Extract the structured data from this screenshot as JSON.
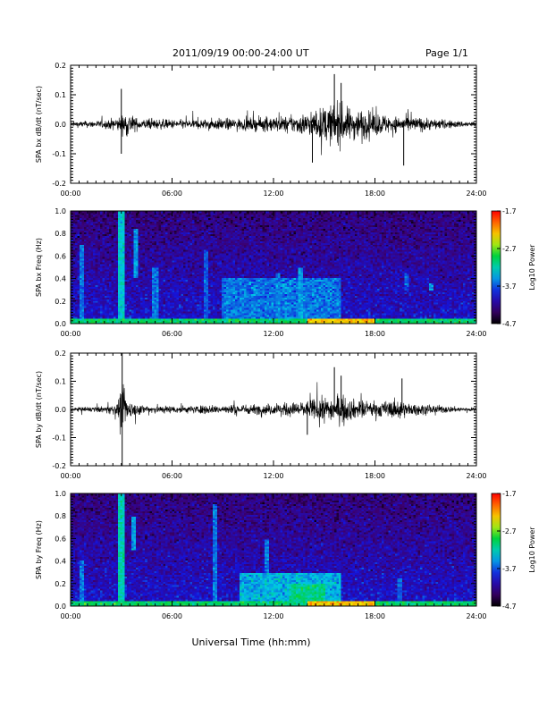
{
  "header": {
    "title": "2011/09/19  00:00-24:00 UT",
    "page": "Page 1/1"
  },
  "xaxis": {
    "label": "Universal Time (hh:mm)",
    "ticks": [
      "00:00",
      "06:00",
      "12:00",
      "18:00",
      "24:00"
    ],
    "range_hours": [
      0,
      24
    ]
  },
  "chart_data": [
    {
      "type": "line",
      "ylabel": "SPA bx dB/dt (nT/sec)",
      "ylim": [
        -0.2,
        0.2
      ],
      "yticks": [
        "0.2",
        "0.1",
        "0.0",
        "-0.1",
        "-0.2"
      ],
      "ytick_values": [
        0.2,
        0.1,
        0.0,
        -0.1,
        -0.2
      ],
      "color": "#000000",
      "envelope": {
        "x_hours": [
          0,
          1,
          2,
          3,
          3.3,
          4,
          5,
          6,
          7,
          8,
          9,
          10,
          11,
          12,
          13,
          14,
          14.5,
          15,
          15.5,
          16,
          16.5,
          17,
          18,
          18.5,
          19,
          20,
          21,
          22,
          23,
          24
        ],
        "amplitude": [
          0.02,
          0.025,
          0.03,
          0.06,
          0.1,
          0.04,
          0.04,
          0.035,
          0.035,
          0.04,
          0.045,
          0.045,
          0.05,
          0.06,
          0.06,
          0.09,
          0.1,
          0.14,
          0.15,
          0.16,
          0.12,
          0.12,
          0.09,
          0.08,
          0.06,
          0.06,
          0.05,
          0.035,
          0.025,
          0.02
        ]
      },
      "spikes": [
        {
          "x": 3.0,
          "y": 0.12
        },
        {
          "x": 3.0,
          "y": -0.1
        },
        {
          "x": 14.3,
          "y": -0.13
        },
        {
          "x": 15.6,
          "y": 0.17
        },
        {
          "x": 16.0,
          "y": 0.14
        },
        {
          "x": 19.7,
          "y": -0.14
        }
      ]
    },
    {
      "type": "heatmap",
      "ylabel": "SPA bx Freq (Hz)",
      "ylim": [
        0.0,
        1.0
      ],
      "yticks": [
        "1.0",
        "0.8",
        "0.6",
        "0.4",
        "0.2",
        "0.0"
      ],
      "ytick_values": [
        1.0,
        0.8,
        0.6,
        0.4,
        0.2,
        0.0
      ],
      "colorbar": {
        "label": "Log10 Power",
        "ticks": [
          "-1.7",
          "-2.7",
          "-3.7",
          "-4.7"
        ],
        "tick_values": [
          -1.7,
          -2.7,
          -3.7,
          -4.7
        ],
        "range": [
          -4.7,
          -1.7
        ]
      },
      "noise_floor": -4.3,
      "features": [
        {
          "kind": "band",
          "t0": 0,
          "t1": 24,
          "f0": 0.0,
          "f1": 0.05,
          "level": -3.0
        },
        {
          "kind": "band",
          "t0": 14,
          "t1": 18,
          "f0": 0.0,
          "f1": 0.04,
          "level": -2.3
        },
        {
          "kind": "band",
          "t0": 9,
          "t1": 16,
          "f0": 0.05,
          "f1": 0.4,
          "level": -3.6
        },
        {
          "kind": "vline",
          "t": 0.7,
          "f0": 0.0,
          "f1": 0.7,
          "level": -3.6
        },
        {
          "kind": "vline",
          "t": 3.0,
          "f0": 0.0,
          "f1": 1.0,
          "level": -3.3
        },
        {
          "kind": "vline",
          "t": 3.9,
          "f0": 0.4,
          "f1": 0.85,
          "level": -3.5
        },
        {
          "kind": "vline",
          "t": 5.0,
          "f0": 0.0,
          "f1": 0.5,
          "level": -3.6
        },
        {
          "kind": "vline",
          "t": 8.0,
          "f0": 0.0,
          "f1": 0.65,
          "level": -3.7
        },
        {
          "kind": "vline",
          "t": 12.3,
          "f0": 0.0,
          "f1": 0.45,
          "level": -3.6
        },
        {
          "kind": "vline",
          "t": 13.6,
          "f0": 0.05,
          "f1": 0.5,
          "level": -3.5
        },
        {
          "kind": "vline",
          "t": 19.9,
          "f0": 0.3,
          "f1": 0.45,
          "level": -3.7
        },
        {
          "kind": "vline",
          "t": 21.3,
          "f0": 0.3,
          "f1": 0.36,
          "level": -3.5
        }
      ]
    },
    {
      "type": "line",
      "ylabel": "SPA by dB/dt (nT/sec)",
      "ylim": [
        -0.2,
        0.2
      ],
      "yticks": [
        "0.2",
        "0.1",
        "0.0",
        "-0.1",
        "-0.2"
      ],
      "ytick_values": [
        0.2,
        0.1,
        0.0,
        -0.1,
        -0.2
      ],
      "color": "#000000",
      "envelope": {
        "x_hours": [
          0,
          1,
          2,
          2.8,
          3.0,
          3.3,
          4,
          5,
          6,
          7,
          8,
          9,
          10,
          11,
          12,
          13,
          14,
          14.5,
          15,
          15.5,
          16,
          16.5,
          17,
          18,
          19,
          19.5,
          20,
          21,
          22,
          23,
          24
        ],
        "amplitude": [
          0.015,
          0.02,
          0.025,
          0.05,
          0.2,
          0.09,
          0.04,
          0.035,
          0.03,
          0.03,
          0.035,
          0.035,
          0.04,
          0.04,
          0.045,
          0.055,
          0.07,
          0.09,
          0.1,
          0.1,
          0.11,
          0.09,
          0.07,
          0.06,
          0.07,
          0.08,
          0.05,
          0.04,
          0.03,
          0.02,
          0.015
        ]
      },
      "spikes": [
        {
          "x": 3.05,
          "y": 0.2
        },
        {
          "x": 3.05,
          "y": -0.2
        },
        {
          "x": 15.6,
          "y": 0.15
        },
        {
          "x": 16.0,
          "y": 0.12
        },
        {
          "x": 19.6,
          "y": 0.11
        },
        {
          "x": 14.0,
          "y": -0.09
        }
      ]
    },
    {
      "type": "heatmap",
      "ylabel": "SPA by Freq (Hz)",
      "ylim": [
        0.0,
        1.0
      ],
      "yticks": [
        "1.0",
        "0.8",
        "0.6",
        "0.4",
        "0.2",
        "0.0"
      ],
      "ytick_values": [
        1.0,
        0.8,
        0.6,
        0.4,
        0.2,
        0.0
      ],
      "colorbar": {
        "label": "Log10 Power",
        "ticks": [
          "-1.7",
          "-2.7",
          "-3.7",
          "-4.7"
        ],
        "tick_values": [
          -1.7,
          -2.7,
          -3.7,
          -4.7
        ],
        "range": [
          -4.7,
          -1.7
        ]
      },
      "noise_floor": -4.3,
      "features": [
        {
          "kind": "band",
          "t0": 0,
          "t1": 24,
          "f0": 0.0,
          "f1": 0.05,
          "level": -3.0
        },
        {
          "kind": "band",
          "t0": 14,
          "t1": 18,
          "f0": 0.0,
          "f1": 0.04,
          "level": -2.3
        },
        {
          "kind": "band",
          "t0": 10,
          "t1": 16,
          "f0": 0.05,
          "f1": 0.3,
          "level": -3.4
        },
        {
          "kind": "band",
          "t0": 13,
          "t1": 15,
          "f0": 0.05,
          "f1": 0.2,
          "level": -3.1
        },
        {
          "kind": "vline",
          "t": 0.7,
          "f0": 0.0,
          "f1": 0.4,
          "level": -3.6
        },
        {
          "kind": "vline",
          "t": 3.0,
          "f0": 0.0,
          "f1": 1.0,
          "level": -3.2
        },
        {
          "kind": "vline",
          "t": 3.7,
          "f0": 0.5,
          "f1": 0.8,
          "level": -3.5
        },
        {
          "kind": "vline",
          "t": 8.5,
          "f0": 0.0,
          "f1": 0.9,
          "level": -3.6
        },
        {
          "kind": "vline",
          "t": 11.6,
          "f0": 0.0,
          "f1": 0.6,
          "level": -3.6
        },
        {
          "kind": "vline",
          "t": 19.5,
          "f0": 0.0,
          "f1": 0.25,
          "level": -3.7
        }
      ]
    }
  ]
}
